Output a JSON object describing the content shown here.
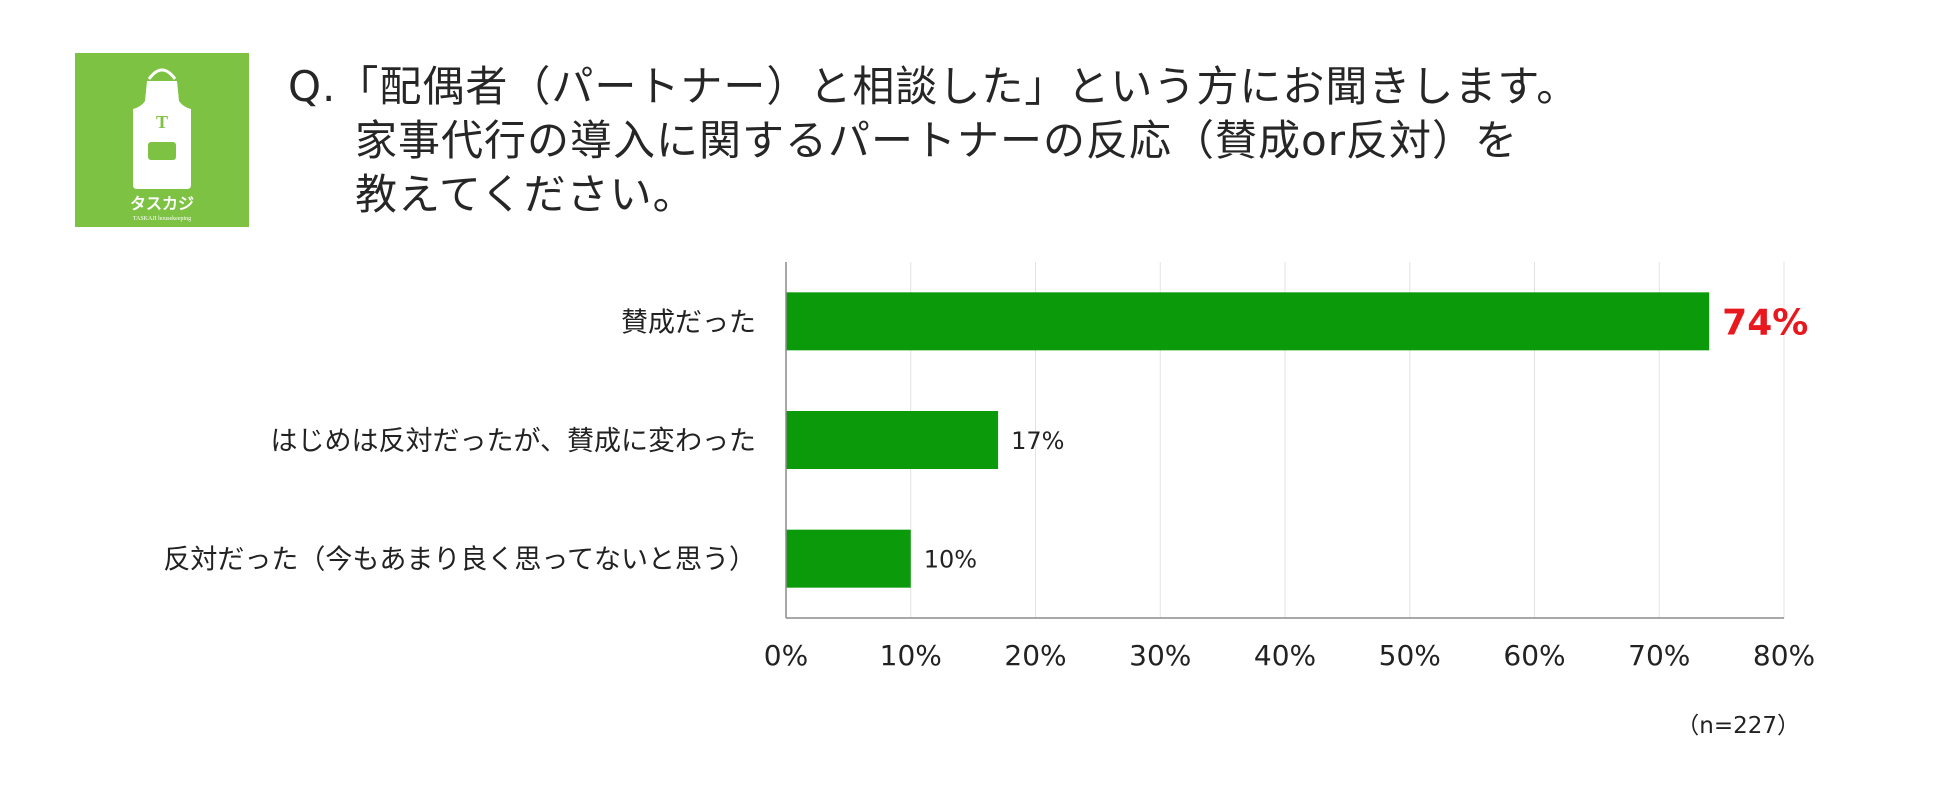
{
  "logo": {
    "text": "タスカジ",
    "subtext": "TASKAJI housekeeping",
    "letter": "T",
    "bg_color": "#7dc242"
  },
  "question": {
    "lines": [
      "Q.「配偶者（パートナー）と相談した」という方にお聞きします。",
      "家事代行の導入に関するパートナーの反応（賛成or反対）を",
      "教えてください。"
    ]
  },
  "chart_data": {
    "type": "bar",
    "orientation": "horizontal",
    "categories": [
      "賛成だった",
      "はじめは反対だったが、賛成に変わった",
      "反対だった（今もあまり良く思ってないと思う）"
    ],
    "values": [
      74,
      17,
      10
    ],
    "data_labels": [
      "74%",
      "17%",
      "10%"
    ],
    "xlim": [
      0,
      80
    ],
    "x_ticks": [
      "0%",
      "10%",
      "20%",
      "30%",
      "40%",
      "50%",
      "60%",
      "70%",
      "80%"
    ],
    "bar_color": "#0a9a0a",
    "highlight_label_color": "#e8191e",
    "grid": true
  },
  "sample_size": "（n=227）"
}
